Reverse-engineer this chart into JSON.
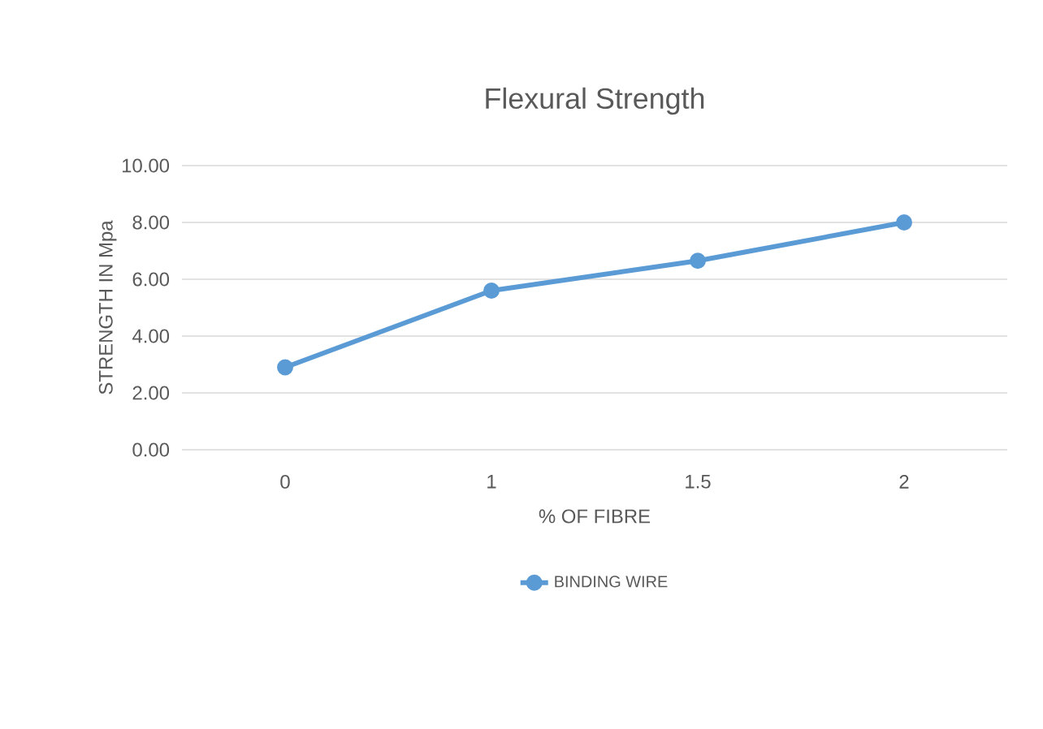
{
  "chart_data": {
    "type": "line",
    "title": "Flexural Strength",
    "xlabel": "% OF FIBRE",
    "ylabel": "STRENGTH IN Mpa",
    "categories": [
      "0",
      "1",
      "1.5",
      "2"
    ],
    "series": [
      {
        "name": "BINDING WIRE",
        "color": "#5b9bd5",
        "values": [
          2.9,
          5.6,
          6.65,
          8.0
        ]
      }
    ],
    "ylim": [
      0,
      10
    ],
    "yticks": [
      {
        "value": 0,
        "label": "0.00"
      },
      {
        "value": 2,
        "label": "2.00"
      },
      {
        "value": 4,
        "label": "4.00"
      },
      {
        "value": 6,
        "label": "6.00"
      },
      {
        "value": 8,
        "label": "8.00"
      },
      {
        "value": 10,
        "label": "10.00"
      }
    ],
    "grid": "y",
    "legend": "bottom",
    "marker": "circle",
    "line_style": "solid"
  }
}
